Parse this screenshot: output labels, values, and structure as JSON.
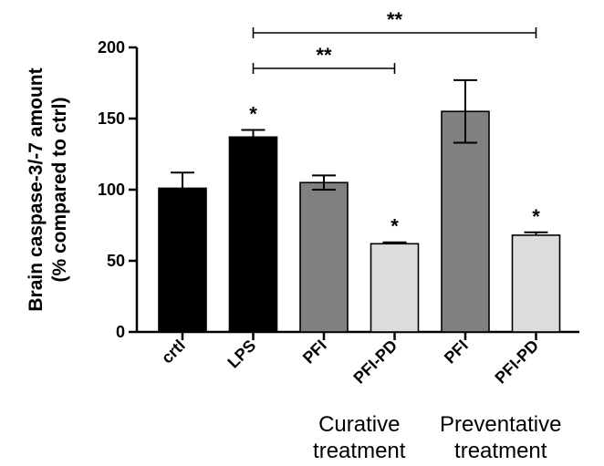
{
  "chart_data": {
    "type": "bar",
    "ylabel_line1": "Brain caspase-3/-7 amount",
    "ylabel_line2": "(% compared to ctrl)",
    "ylim": [
      0,
      200
    ],
    "yticks": [
      0,
      50,
      100,
      150,
      200
    ],
    "categories": [
      "crtl",
      "LPS",
      "PFI",
      "PFI-PD",
      "PFI",
      "PFI-PD"
    ],
    "values": [
      101,
      137,
      105,
      62,
      155,
      68
    ],
    "errors": [
      11,
      5,
      5,
      1,
      22,
      2
    ],
    "fills": [
      "#000000",
      "#000000",
      "#808080",
      "#dcdcdc",
      "#808080",
      "#dcdcdc"
    ],
    "significance_stars": [
      "",
      "*",
      "",
      "*",
      "",
      "*"
    ],
    "group_labels": [
      {
        "line1": "Curative",
        "line2": "treatment",
        "categories": [
          2,
          3
        ]
      },
      {
        "line1": "Preventative",
        "line2": "treatment",
        "categories": [
          4,
          5
        ]
      }
    ],
    "comparisons": [
      {
        "from": 1,
        "to": 3,
        "label": "**"
      },
      {
        "from": 1,
        "to": 5,
        "label": "**"
      }
    ],
    "grid": false,
    "legend": "none"
  }
}
